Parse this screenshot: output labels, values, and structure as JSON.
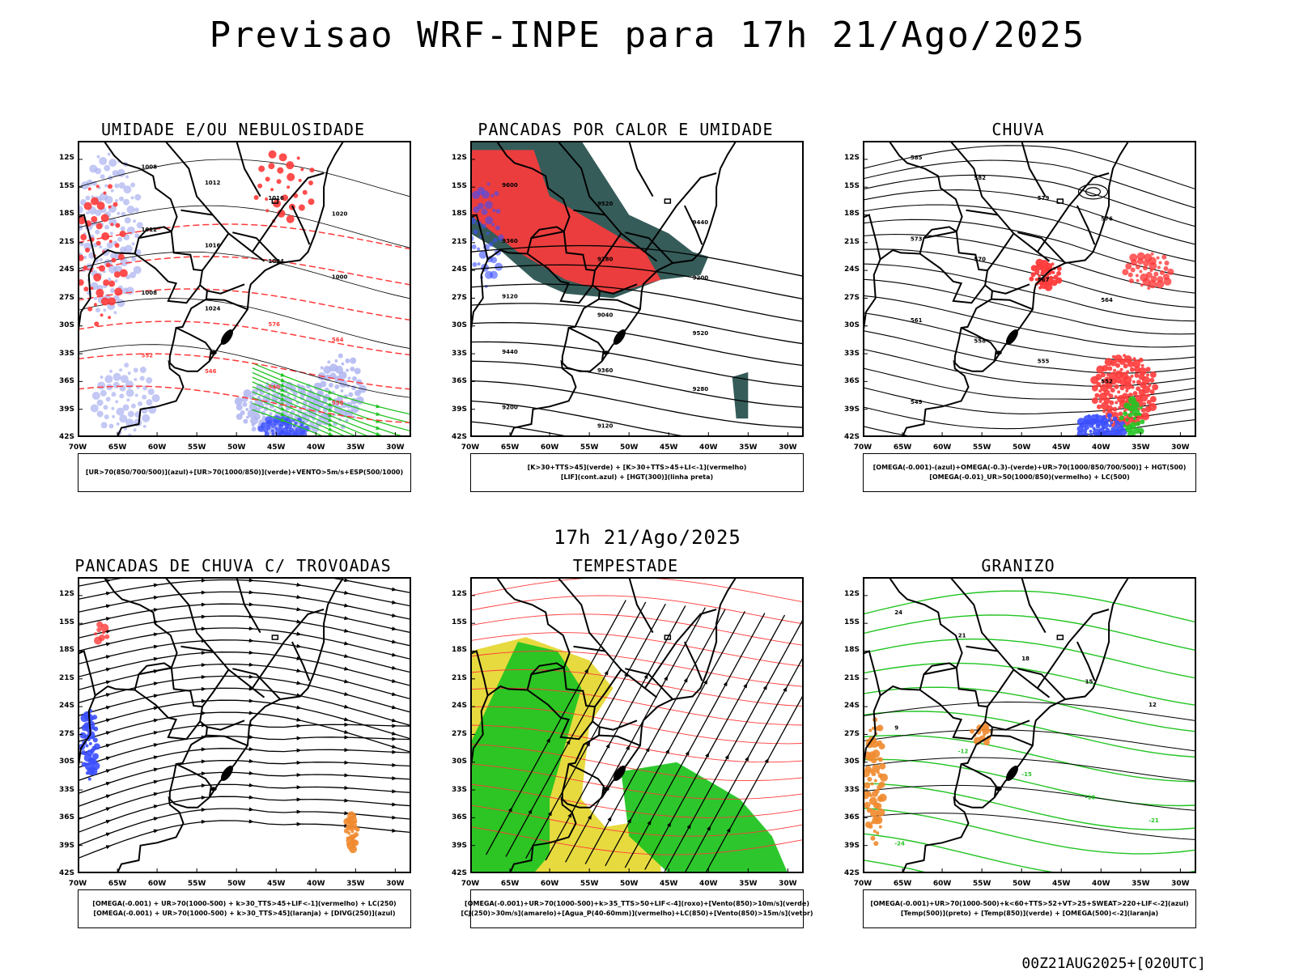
{
  "header": {
    "title": "Previsao WRF-INPE  para 17h 21/Ago/2025",
    "subtitle": "17h 21/Ago/2025",
    "footer": "00Z21AUG2025+[020UTC]"
  },
  "axes": {
    "lat_labels": [
      "12S",
      "15S",
      "18S",
      "21S",
      "24S",
      "27S",
      "30S",
      "33S",
      "36S",
      "39S",
      "42S"
    ],
    "lon_labels": [
      "70W",
      "65W",
      "60W",
      "55W",
      "50W",
      "45W",
      "40W",
      "35W",
      "30W"
    ]
  },
  "colors": {
    "blue": "#3b4fff",
    "lightblue": "#aab0f0",
    "red": "#ff3a3a",
    "green": "#22c422",
    "darkgreen": "#1f4a47",
    "yellow": "#e4d62a",
    "orange": "#f08a2e"
  },
  "panels": [
    {
      "title": "UMIDADE E/OU NEBULOSIDADE",
      "legend": [
        "[UR>70(850/700/500)](azul)+[UR>70(1000/850)](verde)+VENTO>5m/s+ESP(500/1000)"
      ],
      "labels": [
        "1008",
        "1012",
        "1016",
        "1020",
        "1012",
        "1016",
        "1004",
        "1000",
        "1008",
        "1024",
        "576",
        "564",
        "552",
        "546",
        "540",
        "558"
      ]
    },
    {
      "title": "PANCADAS POR CALOR E UMIDADE",
      "legend": [
        "[K>30+TTS>45](verde) + [K>30+TTS>45+LI<-1](vermelho)",
        "[LIF](cont.azul) + [HGT(300)](linha preta)"
      ],
      "labels": [
        "9600",
        "9520",
        "9440",
        "9360",
        "9280",
        "9200",
        "9120",
        "9040",
        "9520",
        "9440",
        "9360",
        "9280",
        "9200",
        "9120"
      ]
    },
    {
      "title": "CHUVA",
      "legend": [
        "[OMEGA(-0.001)-(azul)+OMEGA(-0.3)-(verde)+UR>70(1000/850/700/500)] + HGT(500)",
        "[OMEGA(-0.01)_UR>50(1000/850)(vermelho) + LC(500)"
      ],
      "labels": [
        "585",
        "582",
        "579",
        "576",
        "573",
        "570",
        "567",
        "564",
        "561",
        "558",
        "555",
        "552",
        "549"
      ]
    },
    {
      "title": "PANCADAS DE CHUVA C/ TROVOADAS",
      "legend": [
        "[OMEGA(-0.001) + UR>70(1000-500) + k>30_TTS>45+LIF<-1](vermelho) + LC(250)",
        "[OMEGA(-0.001) + UR>70(1000-500) + k>30_TTS>45](laranja) + [DIVG(250)](azul)"
      ],
      "labels": []
    },
    {
      "title": "TEMPESTADE",
      "legend": [
        "[OMEGA(-0.001)+UR>70(1000-500)+k>35_TTS>50+LIF<-4](roxo)+[Vento(850)>10m/s](verde)",
        "[CJ(250)>30m/s](amarelo)+[Agua_P(40-60mm)](vermelho)+LC(850)+[Vento(850)>15m/s](vetor)"
      ],
      "labels": []
    },
    {
      "title": "GRANIZO",
      "legend": [
        "[OMEGA(-0.001)+UR>70(1000-500)+k<60+TTS>52+VT>25+SWEAT>220+LIF<-2](azul)",
        "[Temp(500)](preto) + [Temp(850)](verde) + [OMEGA(500)<-2](laranja)"
      ],
      "labels": [
        "24",
        "21",
        "18",
        "15",
        "12",
        "9",
        "-12",
        "-15",
        "-18",
        "-21",
        "-24"
      ]
    }
  ]
}
